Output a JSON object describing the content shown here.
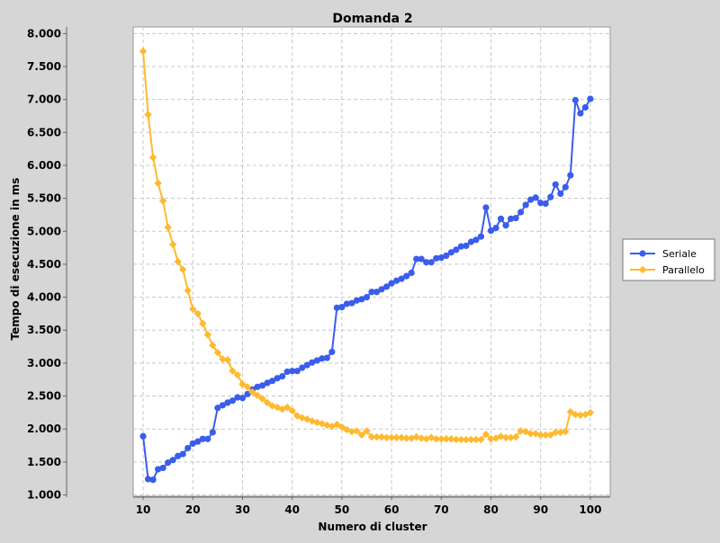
{
  "chart_data": {
    "type": "line",
    "title": "Domanda 2",
    "xlabel": "Numero di cluster",
    "ylabel": "Tempo di esecuzione in ms",
    "xlim": [
      8,
      104
    ],
    "ylim": [
      980,
      8100
    ],
    "xticks": [
      10,
      20,
      30,
      40,
      50,
      60,
      70,
      80,
      90,
      100
    ],
    "xtick_labels": [
      "10",
      "20",
      "30",
      "40",
      "50",
      "60",
      "70",
      "80",
      "90",
      "100"
    ],
    "yticks": [
      1000,
      1500,
      2000,
      2500,
      3000,
      3500,
      4000,
      4500,
      5000,
      5500,
      6000,
      6500,
      7000,
      7500,
      8000
    ],
    "ytick_labels": [
      "1.000",
      "1.500",
      "2.000",
      "2.500",
      "3.000",
      "3.500",
      "4.000",
      "4.500",
      "5.000",
      "5.500",
      "6.000",
      "6.500",
      "7.000",
      "7.500",
      "8.000"
    ],
    "grid": true,
    "legend_position": "right",
    "colors": {
      "figure_bg": "#d6d6d6",
      "plot_bg": "#ffffff",
      "grid": "#c8c8c8",
      "seriale": "#3a5dec",
      "parallelo": "#ffb92e"
    },
    "series": [
      {
        "name": "Seriale",
        "marker": "circle",
        "x": [
          10,
          11,
          12,
          13,
          14,
          15,
          16,
          17,
          18,
          19,
          20,
          21,
          22,
          23,
          24,
          25,
          26,
          27,
          28,
          29,
          30,
          31,
          32,
          33,
          34,
          35,
          36,
          37,
          38,
          39,
          40,
          41,
          42,
          43,
          44,
          45,
          46,
          47,
          48,
          49,
          50,
          51,
          52,
          53,
          54,
          55,
          56,
          57,
          58,
          59,
          60,
          61,
          62,
          63,
          64,
          65,
          66,
          67,
          68,
          69,
          70,
          71,
          72,
          73,
          74,
          75,
          76,
          77,
          78,
          79,
          80,
          81,
          82,
          83,
          84,
          85,
          86,
          87,
          88,
          89,
          90,
          91,
          92,
          93,
          94,
          95,
          96,
          97,
          98,
          99,
          100
        ],
        "values": [
          1890,
          1240,
          1230,
          1390,
          1410,
          1490,
          1530,
          1590,
          1620,
          1710,
          1780,
          1810,
          1850,
          1850,
          1950,
          2320,
          2360,
          2400,
          2430,
          2480,
          2470,
          2530,
          2600,
          2640,
          2660,
          2700,
          2730,
          2770,
          2800,
          2870,
          2880,
          2880,
          2930,
          2970,
          3010,
          3040,
          3070,
          3080,
          3170,
          3840,
          3850,
          3900,
          3910,
          3950,
          3970,
          4000,
          4080,
          4080,
          4120,
          4160,
          4210,
          4250,
          4280,
          4320,
          4370,
          4580,
          4580,
          4530,
          4530,
          4590,
          4600,
          4630,
          4680,
          4720,
          4770,
          4780,
          4840,
          4870,
          4920,
          5360,
          5010,
          5050,
          5190,
          5090,
          5190,
          5200,
          5290,
          5400,
          5480,
          5510,
          5430,
          5420,
          5520,
          5710,
          5570,
          5670,
          5850,
          6990,
          6790,
          6880,
          7010
        ]
      },
      {
        "name": "Parallelo",
        "marker": "diamond",
        "x": [
          10,
          11,
          12,
          13,
          14,
          15,
          16,
          17,
          18,
          19,
          20,
          21,
          22,
          23,
          24,
          25,
          26,
          27,
          28,
          29,
          30,
          31,
          32,
          33,
          34,
          35,
          36,
          37,
          38,
          39,
          40,
          41,
          42,
          43,
          44,
          45,
          46,
          47,
          48,
          49,
          50,
          51,
          52,
          53,
          54,
          55,
          56,
          57,
          58,
          59,
          60,
          61,
          62,
          63,
          64,
          65,
          66,
          67,
          68,
          69,
          70,
          71,
          72,
          73,
          74,
          75,
          76,
          77,
          78,
          79,
          80,
          81,
          82,
          83,
          84,
          85,
          86,
          87,
          88,
          89,
          90,
          91,
          92,
          93,
          94,
          95,
          96,
          97,
          98,
          99,
          100
        ],
        "values": [
          7730,
          6770,
          6120,
          5730,
          5460,
          5060,
          4800,
          4540,
          4420,
          4100,
          3820,
          3750,
          3600,
          3430,
          3270,
          3160,
          3060,
          3050,
          2880,
          2820,
          2680,
          2640,
          2560,
          2510,
          2460,
          2400,
          2350,
          2330,
          2300,
          2330,
          2280,
          2200,
          2170,
          2150,
          2120,
          2100,
          2080,
          2060,
          2040,
          2070,
          2030,
          1990,
          1960,
          1970,
          1910,
          1970,
          1880,
          1880,
          1880,
          1870,
          1870,
          1870,
          1870,
          1860,
          1860,
          1880,
          1860,
          1850,
          1870,
          1850,
          1850,
          1850,
          1850,
          1840,
          1840,
          1840,
          1840,
          1840,
          1840,
          1920,
          1850,
          1860,
          1890,
          1870,
          1870,
          1880,
          1970,
          1960,
          1930,
          1930,
          1910,
          1910,
          1910,
          1950,
          1950,
          1960,
          2260,
          2220,
          2210,
          2220,
          2250
        ]
      }
    ]
  }
}
